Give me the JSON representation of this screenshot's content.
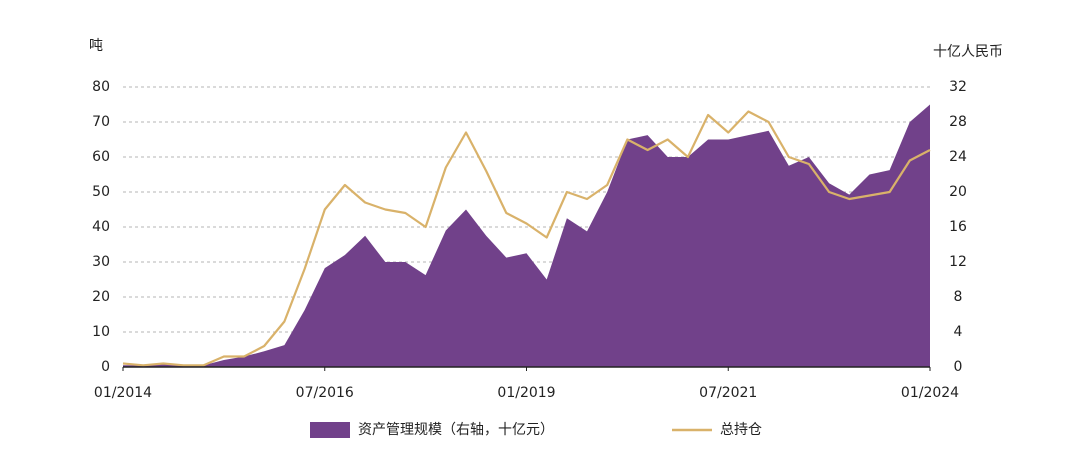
{
  "chart_data": {
    "type": "area-line",
    "y_label": "吨",
    "y2_label": "十亿人民币",
    "x": [
      "01/2014",
      "04/2014",
      "07/2014",
      "10/2014",
      "01/2015",
      "04/2015",
      "07/2015",
      "10/2015",
      "01/2016",
      "04/2016",
      "07/2016",
      "10/2016",
      "01/2017",
      "04/2017",
      "07/2017",
      "10/2017",
      "01/2018",
      "04/2018",
      "07/2018",
      "10/2018",
      "01/2019",
      "04/2019",
      "07/2019",
      "10/2019",
      "01/2020",
      "04/2020",
      "07/2020",
      "10/2020",
      "01/2021",
      "04/2021",
      "07/2021",
      "10/2021",
      "01/2022",
      "04/2022",
      "07/2022",
      "10/2022",
      "01/2023",
      "04/2023",
      "07/2023",
      "10/2023",
      "01/2024"
    ],
    "xlim": [
      "01/2014",
      "01/2024"
    ],
    "xticks": [
      "01/2014",
      "07/2016",
      "01/2019",
      "07/2021",
      "01/2024"
    ],
    "ylim": [
      0,
      80
    ],
    "yticks": [
      0,
      10,
      20,
      30,
      40,
      50,
      60,
      70,
      80
    ],
    "y2lim": [
      0,
      32
    ],
    "y2ticks": [
      0,
      4,
      8,
      12,
      16,
      20,
      24,
      28,
      32
    ],
    "grid": true,
    "legend": "bottom",
    "series": [
      {
        "name": "资产管理规模（右轴，十亿元）",
        "kind": "area",
        "axis": "y2",
        "color": "#71418a",
        "values": [
          0.2,
          0.2,
          0.4,
          0.2,
          0.2,
          0.8,
          1.2,
          1.8,
          2.5,
          6.5,
          11.3,
          12.8,
          15,
          12,
          12,
          10.5,
          15.6,
          18,
          15,
          12.5,
          13,
          10,
          17,
          15.5,
          20,
          26,
          26.5,
          24,
          24,
          26,
          26,
          26.5,
          27,
          23,
          24,
          21,
          19.7,
          22,
          22.5,
          28,
          30
        ]
      },
      {
        "name": "总持仓",
        "kind": "line",
        "axis": "y",
        "color": "#d9b26a",
        "values": [
          1,
          0.5,
          1,
          0.5,
          0.5,
          3,
          3,
          6,
          13,
          28,
          45,
          52,
          47,
          45,
          44,
          40,
          57,
          67,
          56,
          44,
          41,
          37,
          50,
          48,
          52,
          65,
          62,
          65,
          60,
          72,
          67,
          73,
          70,
          60,
          58,
          50,
          48,
          49,
          50,
          59,
          62
        ]
      }
    ]
  }
}
